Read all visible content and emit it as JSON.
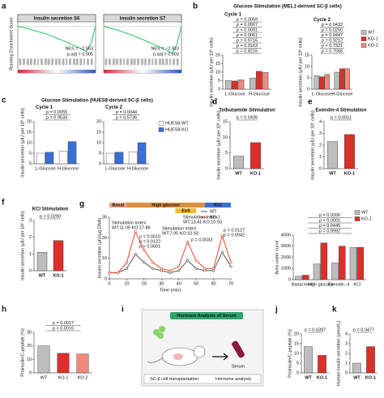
{
  "chart_data": [
    {
      "type": "gsea",
      "panel": "a",
      "title": "Insulin secretion S6",
      "ylabel": "Running Enrichment Score",
      "annotations": [
        "NES = −2.653",
        "p.adj = 0.005"
      ],
      "x": [
        0,
        10,
        20,
        30,
        40,
        50,
        60,
        70,
        80,
        88,
        94,
        100
      ],
      "values": [
        0,
        -0.04,
        -0.09,
        -0.14,
        -0.2,
        -0.27,
        -0.34,
        -0.42,
        -0.5,
        -0.58,
        -0.4,
        0
      ],
      "xlim": [
        0,
        100
      ],
      "ylim": [
        -0.7,
        0.1
      ],
      "color": "#22c35e"
    },
    {
      "type": "gsea",
      "title": "Insulin secretion S7",
      "annotations": [
        "NES = −2.910",
        "p.adj = 0.003"
      ],
      "x": [
        0,
        10,
        20,
        30,
        40,
        50,
        60,
        70,
        80,
        88,
        94,
        100
      ],
      "values": [
        0,
        -0.05,
        -0.1,
        -0.16,
        -0.23,
        -0.3,
        -0.38,
        -0.46,
        -0.54,
        -0.62,
        -0.42,
        0
      ],
      "xlim": [
        0,
        100
      ],
      "ylim": [
        -0.7,
        0.1
      ],
      "color": "#22c35e"
    },
    {
      "type": "bar",
      "panel": "b",
      "title": "Glucose Stimulation (MEL1-derived SC-β cells)",
      "subtitle": "Cycle 1",
      "ylabel": "Insulin secretion (μIU per 10⁵ cells)",
      "categories": [
        "L-Glucose",
        "H-Glucose"
      ],
      "series": [
        {
          "name": "WT",
          "color": "#bdbdbd",
          "values": [
            5.2,
            6.5
          ]
        },
        {
          "name": "KO-1",
          "color": "#d9302c",
          "values": [
            4.8,
            10.5
          ]
        },
        {
          "name": "KO-2",
          "color": "#ef8a7c",
          "values": [
            5.5,
            9.8
          ]
        }
      ],
      "legend": true,
      "ylim": [
        0,
        20
      ],
      "yticks": [
        0,
        5,
        10,
        15,
        20
      ],
      "annotations": [
        "p = 0.0059",
        "p = 0.0007",
        "p < 0.0001",
        "p = 0.0061",
        "p = 0.9716",
        "p = 0.9163",
        "p = 0.8216"
      ]
    },
    {
      "type": "bar",
      "subtitle": "Cycle 2",
      "ylabel": "Insulin secretion (μIU per 10⁵ cells)",
      "categories": [
        "L-Glucose",
        "H-Glucose"
      ],
      "series": [
        {
          "color": "#bdbdbd",
          "values": [
            6,
            7.5
          ]
        },
        {
          "color": "#d9302c",
          "values": [
            5.5,
            9
          ]
        },
        {
          "color": "#ef8a7c",
          "values": [
            6.5,
            9
          ]
        }
      ],
      "ylim": [
        0,
        15
      ],
      "yticks": [
        0,
        5,
        10,
        15
      ],
      "annotations": [
        "p = 0.0432",
        "p = 0.0250",
        "p = 0.9447",
        "p = 0.9212",
        "p = 0.7321",
        "p = 0.7068"
      ]
    },
    {
      "type": "bar",
      "panel": "c",
      "title": "Glucose Stimulation (HUES8-derived SC-β cells)",
      "subtitle": "Cycle 1",
      "ylabel": "Insulin secretion (μIU per 10⁵ cells)",
      "categories": [
        "L-Glucose",
        "H-Glucose"
      ],
      "series": [
        {
          "name": "HUES8-WT",
          "color": "#ffffff",
          "values": [
            5,
            6
          ]
        },
        {
          "name": "HUES8-KO",
          "color": "#3a6fd6",
          "values": [
            5.5,
            10.5
          ]
        }
      ],
      "legend": true,
      "ylim": [
        0,
        20
      ],
      "yticks": [
        0,
        5,
        10,
        15,
        20
      ],
      "annotations": [
        "p = 0.0055",
        "p = 0.9634"
      ]
    },
    {
      "type": "bar",
      "subtitle": "Cycle 2",
      "categories": [
        "L-Glucose",
        "H-Glucose"
      ],
      "series": [
        {
          "color": "#ffffff",
          "values": [
            5,
            5.5
          ]
        },
        {
          "color": "#3a6fd6",
          "values": [
            5.5,
            10
          ]
        }
      ],
      "ylim": [
        0,
        20
      ],
      "yticks": [
        0,
        5,
        10,
        15,
        20
      ],
      "annotations": [
        "p = 0.0044",
        "p = 0.5736"
      ]
    },
    {
      "type": "bar",
      "panel": "d",
      "title": "Tolbutamide Stimulation",
      "ylabel": "Insulin secretion (μIU per 10⁵ cells)",
      "categories": [
        "WT",
        "KO-1"
      ],
      "values": [
        4,
        8.3
      ],
      "colors": [
        "#bdbdbd",
        "#d9302c"
      ],
      "ylim": [
        0,
        15
      ],
      "yticks": [
        0,
        5,
        10,
        15
      ],
      "annotations": [
        "p = 0.0439"
      ]
    },
    {
      "type": "bar",
      "panel": "e",
      "title": "Exendin-4 Stimulation",
      "ylabel": "Insulin secretion (μIU per 10⁵ cells)",
      "categories": [
        "WT",
        "KO-1"
      ],
      "values": [
        2.3,
        2.9
      ],
      "colors": [
        "#bdbdbd",
        "#d9302c"
      ],
      "ylim": [
        0,
        4
      ],
      "yticks": [
        0,
        1,
        2,
        3,
        4
      ],
      "annotations": [
        "p = 0.0011"
      ]
    },
    {
      "type": "bar",
      "panel": "f",
      "title": "KCl Stimulation",
      "ylabel": "Insulin secretion (μIU per 10⁵ cells)",
      "categories": [
        "WT",
        "KO-1"
      ],
      "values": [
        1.1,
        1.8
      ],
      "colors": [
        "#bdbdbd",
        "#d9302c"
      ],
      "ylim": [
        0,
        3
      ],
      "yticks": [
        0,
        1,
        2,
        3
      ],
      "annotations": [
        "p = 0.0290"
      ]
    },
    {
      "type": "line",
      "panel": "g",
      "xlabel": "Time (min)",
      "ylabel": "Insulin secretion (μIU/μg DNA)",
      "x": [
        0,
        5,
        10,
        15,
        20,
        25,
        30,
        35,
        40,
        45,
        50,
        55,
        60,
        65,
        70
      ],
      "series": [
        {
          "name": "WT",
          "color": "#555555",
          "values": [
            3,
            3,
            5,
            12,
            8,
            5,
            4,
            3,
            4,
            9,
            5,
            4,
            4,
            13,
            6
          ]
        },
        {
          "name": "KO-1",
          "color": "#e8472a",
          "values": [
            3,
            3,
            8,
            23,
            14,
            8,
            5,
            4,
            6,
            18,
            9,
            5,
            5,
            21,
            8
          ]
        }
      ],
      "xlim": [
        0,
        70
      ],
      "xticks": [
        0,
        10,
        20,
        30,
        40,
        50,
        60,
        70
      ],
      "ylim": [
        0,
        30
      ],
      "yticks": [
        0,
        10,
        20,
        30
      ],
      "stages": [
        {
          "label": "Basal",
          "start": 0,
          "end": 10,
          "color": "#f2a17f"
        },
        {
          "label": "High glucose",
          "start": 10,
          "end": 55,
          "color": "#d98f3c"
        },
        {
          "label": "Ex4",
          "start": 38,
          "end": 50,
          "color": "#f2b632"
        },
        {
          "label": "KCl",
          "start": 55,
          "end": 70,
          "color": "#3a6fd6"
        }
      ],
      "annotations": [
        "Stimulation Index",
        "WT:11.09 KO:17.86",
        "Stimulation Index",
        "WT:7.95 KO:10.93",
        "Stimulation Index",
        "WT:13.41 KO:10.93"
      ],
      "p_labels": [
        "p = 0.0010",
        "p = 0.0122",
        "p < 0.0001",
        "p = 0.0033",
        "p = 0.0127",
        "p = 0.0042"
      ]
    },
    {
      "type": "bar",
      "ylabel": "Area under curve",
      "categories": [
        "Basal level",
        "High glucose",
        "Exendin -4",
        "KCl"
      ],
      "series": [
        {
          "name": "WT",
          "color": "#bdbdbd",
          "values": [
            300,
            1400,
            1500,
            2900
          ]
        },
        {
          "name": "KO-1",
          "color": "#d9302c",
          "values": [
            400,
            3300,
            3000,
            2900
          ]
        }
      ],
      "legend": true,
      "ylim": [
        0,
        4000
      ],
      "yticks": [
        0,
        1000,
        2000,
        3000,
        4000
      ],
      "annotations": [
        "p = 0.0206",
        "p < 0.0001",
        "p = 0.0445",
        "p = 0.9992"
      ]
    },
    {
      "type": "bar",
      "panel": "h",
      "ylabel": "Proinsulin/C-peptide (%)",
      "categories": [
        "WT",
        "KO-1",
        "KO-2"
      ],
      "values": [
        20,
        14.5,
        14
      ],
      "colors": [
        "#bdbdbd",
        "#d9302c",
        "#ef8a7c"
      ],
      "ylim": [
        0,
        30
      ],
      "yticks": [
        0,
        10,
        20,
        30
      ],
      "annotations": [
        "p = 0.0017",
        "p = 0.0016"
      ]
    },
    {
      "type": "bar",
      "panel": "j",
      "ylabel": "Proinsulin/C-peptide (%)",
      "categories": [
        "WT",
        "KO-1"
      ],
      "values": [
        13.5,
        9
      ],
      "colors": [
        "#bdbdbd",
        "#d9302c"
      ],
      "ylim": [
        0,
        20
      ],
      "yticks": [
        0,
        5,
        10,
        15,
        20
      ],
      "annotations": [
        "p = 0.0397"
      ]
    },
    {
      "type": "bar",
      "panel": "k",
      "ylabel": "Human insulin secretion (pmol/L)",
      "categories": [
        "WT",
        "KO-1"
      ],
      "values": [
        1.0,
        2.7
      ],
      "colors": [
        "#bdbdbd",
        "#d9302c"
      ],
      "ylim": [
        0,
        4
      ],
      "yticks": [
        0,
        1,
        2,
        3,
        4
      ],
      "annotations": [
        "p = 0.0477"
      ]
    }
  ],
  "panel_i": {
    "panel": "i",
    "title": "Hormone Analysis of Serum",
    "labels": [
      "Serum",
      "SC-β cell transplantation",
      "Hormone analysis"
    ]
  }
}
